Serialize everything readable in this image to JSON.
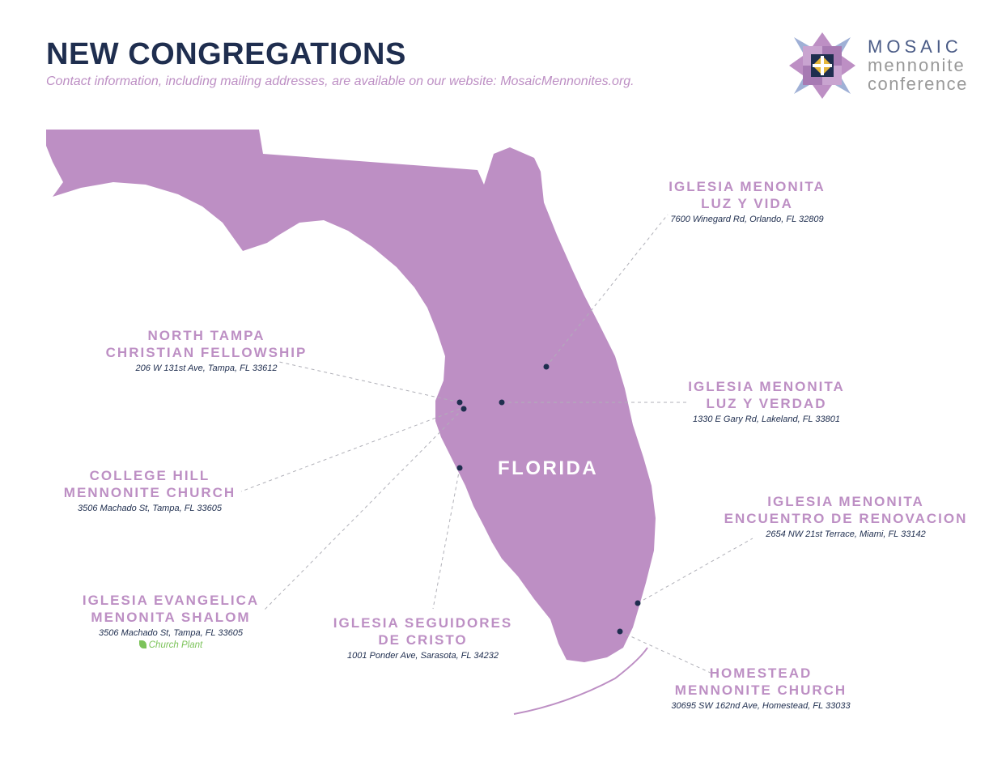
{
  "header": {
    "title": "NEW CONGREGATIONS",
    "subtitle": "Contact information, including mailing addresses, are available on our website: MosaicMennonites.org."
  },
  "logo": {
    "line1": "MOSAIC",
    "line2": "mennonite",
    "line3": "conference",
    "icon": "quilt-star-icon"
  },
  "map": {
    "state_label": "FLORIDA",
    "colors": {
      "land": "#bd8fc4",
      "marker": "#1f2e4f",
      "title": "#1f2e4f",
      "label": "#bd8fc4",
      "church_plant": "#7cc35a"
    }
  },
  "congregations": [
    {
      "name_line1": "IGLESIA MENONITA",
      "name_line2": "LUZ Y VIDA",
      "address": "7600 Winegard Rd, Orlando, FL 32809"
    },
    {
      "name_line1": "NORTH TAMPA",
      "name_line2": "CHRISTIAN FELLOWSHIP",
      "address": "206 W 131st Ave, Tampa, FL 33612"
    },
    {
      "name_line1": "IGLESIA MENONITA",
      "name_line2": "LUZ Y VERDAD",
      "address": "1330 E Gary Rd, Lakeland, FL 33801"
    },
    {
      "name_line1": "COLLEGE HILL",
      "name_line2": "MENNONITE CHURCH",
      "address": "3506 Machado St, Tampa, FL 33605"
    },
    {
      "name_line1": "IGLESIA MENONITA",
      "name_line2": "ENCUENTRO DE RENOVACION",
      "address": "2654 NW 21st Terrace, Miami, FL 33142"
    },
    {
      "name_line1": "IGLESIA EVANGELICA",
      "name_line2": "MENONITA SHALOM",
      "address": "3506 Machado St, Tampa, FL 33605",
      "badge": "Church Plant"
    },
    {
      "name_line1": "IGLESIA SEGUIDORES",
      "name_line2": "DE CRISTO",
      "address": "1001 Ponder Ave, Sarasota, FL 34232"
    },
    {
      "name_line1": "HOMESTEAD",
      "name_line2": "MENNONITE CHURCH",
      "address": "30695 SW 162nd Ave, Homestead, FL 33033"
    }
  ]
}
